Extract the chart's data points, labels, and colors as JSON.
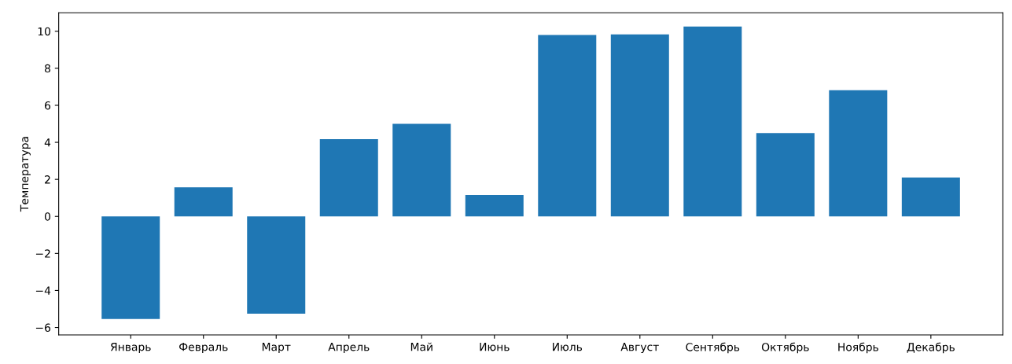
{
  "chart_data": {
    "type": "bar",
    "ylabel": "Температура",
    "categories": [
      "Январь",
      "Февраль",
      "Март",
      "Апрель",
      "Май",
      "Июнь",
      "Июль",
      "Август",
      "Сентябрь",
      "Октябрь",
      "Ноябрь",
      "Декабрь"
    ],
    "values": [
      -5.54,
      1.57,
      -5.25,
      4.17,
      5.0,
      1.16,
      9.8,
      9.83,
      10.25,
      4.5,
      6.82,
      2.1
    ],
    "color": "#1f77b4",
    "ylim": [
      -6.4,
      11.0
    ],
    "yticks": [
      -6,
      -4,
      -2,
      0,
      2,
      4,
      6,
      8,
      10
    ]
  }
}
